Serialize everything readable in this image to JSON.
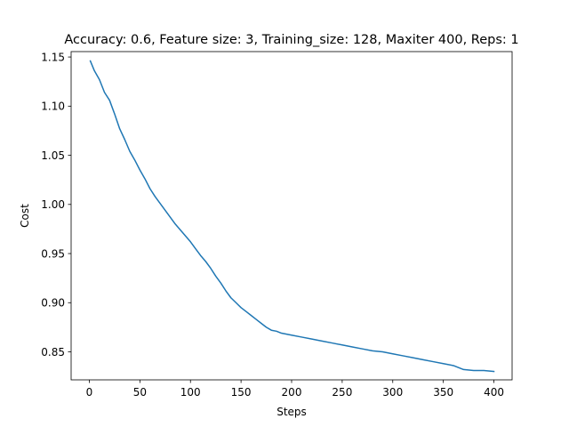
{
  "chart_data": {
    "type": "line",
    "title": "Accuracy: 0.6, Feature size: 3, Training_size: 128, Maxiter 400, Reps: 1",
    "xlabel": "Steps",
    "ylabel": "Cost",
    "xlim": [
      -18,
      418
    ],
    "ylim": [
      0.8215,
      1.1555
    ],
    "xticks": [
      0,
      50,
      100,
      150,
      200,
      250,
      300,
      350,
      400
    ],
    "yticks": [
      0.85,
      0.9,
      0.95,
      1.0,
      1.05,
      1.1,
      1.15
    ],
    "ytick_labels": [
      "0.85",
      "0.90",
      "0.95",
      "1.00",
      "1.05",
      "1.10",
      "1.15"
    ],
    "grid": false,
    "series": [
      {
        "color": "#1f77b4",
        "x": [
          1,
          5,
          10,
          15,
          20,
          25,
          30,
          35,
          40,
          45,
          50,
          55,
          60,
          65,
          70,
          75,
          80,
          85,
          90,
          95,
          100,
          105,
          110,
          115,
          120,
          125,
          130,
          135,
          140,
          145,
          150,
          155,
          160,
          165,
          170,
          175,
          180,
          185,
          190,
          200,
          210,
          220,
          230,
          240,
          250,
          260,
          270,
          280,
          290,
          295,
          300,
          310,
          320,
          330,
          340,
          350,
          360,
          365,
          370,
          380,
          390,
          400
        ],
        "values": [
          1.146,
          1.136,
          1.127,
          1.114,
          1.106,
          1.092,
          1.077,
          1.066,
          1.054,
          1.045,
          1.035,
          1.026,
          1.016,
          1.008,
          1.001,
          0.994,
          0.987,
          0.98,
          0.974,
          0.968,
          0.962,
          0.955,
          0.948,
          0.942,
          0.935,
          0.927,
          0.92,
          0.912,
          0.905,
          0.9,
          0.895,
          0.891,
          0.887,
          0.883,
          0.879,
          0.875,
          0.872,
          0.871,
          0.869,
          0.867,
          0.865,
          0.863,
          0.861,
          0.859,
          0.857,
          0.855,
          0.853,
          0.851,
          0.85,
          0.849,
          0.848,
          0.846,
          0.844,
          0.842,
          0.84,
          0.838,
          0.836,
          0.834,
          0.832,
          0.831,
          0.831,
          0.83
        ]
      }
    ]
  }
}
